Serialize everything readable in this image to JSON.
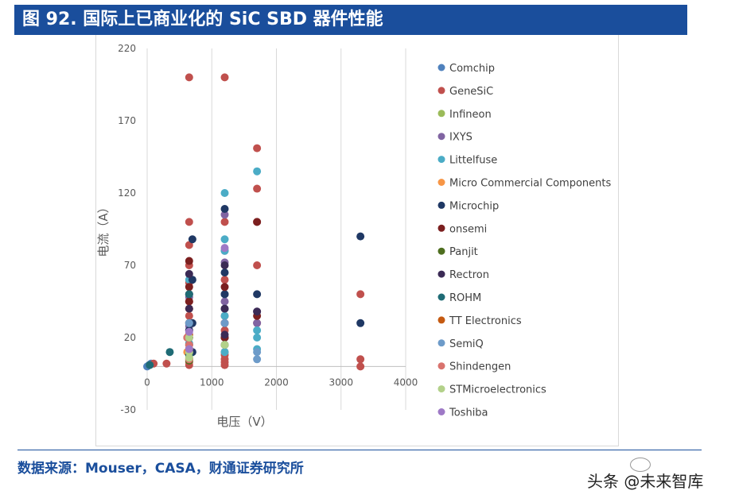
{
  "header": {
    "title": "图 92. 国际上已商业化的 SiC SBD 器件性能"
  },
  "footer": {
    "source": "数据来源：Mouser，CASA，财通证券研究所",
    "watermark": "头条 @未来智库"
  },
  "chart_data": {
    "type": "scatter",
    "title": "",
    "xlabel": "电压（V）",
    "ylabel": "电流（A）",
    "xlim": [
      0,
      4000
    ],
    "ylim": [
      -30,
      220
    ],
    "x_ticks": [
      0,
      1000,
      2000,
      3000,
      4000
    ],
    "y_ticks": [
      -30,
      20,
      70,
      120,
      170,
      220
    ],
    "grid": "vertical",
    "legend_position": "right",
    "series": [
      {
        "name": "Comchip",
        "color": "#4f81bd",
        "points": [
          [
            0,
            0
          ],
          [
            30,
            1
          ],
          [
            60,
            2
          ]
        ]
      },
      {
        "name": "GeneSiC",
        "color": "#c0504d",
        "points": [
          [
            650,
            200
          ],
          [
            1200,
            200
          ],
          [
            1700,
            151
          ],
          [
            1700,
            123
          ],
          [
            650,
            100
          ],
          [
            1200,
            100
          ],
          [
            1700,
            100
          ],
          [
            650,
            84
          ],
          [
            1700,
            70
          ],
          [
            650,
            70
          ],
          [
            1200,
            60
          ],
          [
            650,
            58
          ],
          [
            650,
            50
          ],
          [
            1200,
            50
          ],
          [
            650,
            45
          ],
          [
            650,
            40
          ],
          [
            1200,
            40
          ],
          [
            650,
            35
          ],
          [
            1200,
            35
          ],
          [
            650,
            30
          ],
          [
            1200,
            30
          ],
          [
            1700,
            30
          ],
          [
            650,
            25
          ],
          [
            1200,
            25
          ],
          [
            620,
            20
          ],
          [
            650,
            20
          ],
          [
            1200,
            20
          ],
          [
            650,
            15
          ],
          [
            1200,
            15
          ],
          [
            650,
            10
          ],
          [
            1200,
            10
          ],
          [
            650,
            8
          ],
          [
            1200,
            8
          ],
          [
            650,
            5
          ],
          [
            1200,
            5
          ],
          [
            650,
            3
          ],
          [
            1200,
            3
          ],
          [
            650,
            1
          ],
          [
            1200,
            1
          ],
          [
            300,
            2
          ],
          [
            100,
            2
          ],
          [
            3300,
            50
          ],
          [
            3300,
            5
          ],
          [
            3300,
            0
          ]
        ]
      },
      {
        "name": "Infineon",
        "color": "#9bbb59",
        "points": [
          [
            650,
            12
          ],
          [
            1200,
            15
          ],
          [
            650,
            6
          ]
        ]
      },
      {
        "name": "IXYS",
        "color": "#8064a2",
        "points": [
          [
            1200,
            105
          ],
          [
            1200,
            80
          ],
          [
            1200,
            72
          ],
          [
            650,
            48
          ],
          [
            1700,
            38
          ],
          [
            1700,
            30
          ],
          [
            650,
            28
          ],
          [
            1200,
            45
          ]
        ]
      },
      {
        "name": "Littelfuse",
        "color": "#4bacc6",
        "points": [
          [
            1700,
            135
          ],
          [
            1200,
            120
          ],
          [
            1200,
            88
          ],
          [
            1200,
            80
          ],
          [
            650,
            60
          ],
          [
            1200,
            50
          ],
          [
            1200,
            40
          ],
          [
            1200,
            35
          ],
          [
            1700,
            25
          ],
          [
            1700,
            20
          ],
          [
            650,
            16
          ],
          [
            1700,
            12
          ],
          [
            1200,
            10
          ]
        ]
      },
      {
        "name": "Micro Commercial Components",
        "color": "#f79646",
        "points": [
          [
            650,
            40
          ],
          [
            620,
            10
          ],
          [
            650,
            4
          ]
        ]
      },
      {
        "name": "Microchip",
        "color": "#1f3864",
        "points": [
          [
            700,
            88
          ],
          [
            1200,
            109
          ],
          [
            1200,
            65
          ],
          [
            700,
            60
          ],
          [
            650,
            50
          ],
          [
            1200,
            50
          ],
          [
            1700,
            50
          ],
          [
            700,
            30
          ],
          [
            650,
            25
          ],
          [
            1200,
            20
          ],
          [
            700,
            10
          ],
          [
            3300,
            90
          ],
          [
            3300,
            30
          ]
        ]
      },
      {
        "name": "onsemi",
        "color": "#7b1f1f",
        "points": [
          [
            1700,
            100
          ],
          [
            650,
            73
          ],
          [
            650,
            55
          ],
          [
            1200,
            55
          ],
          [
            650,
            45
          ],
          [
            650,
            30
          ],
          [
            1200,
            30
          ],
          [
            1700,
            35
          ],
          [
            650,
            20
          ],
          [
            1200,
            20
          ],
          [
            650,
            12
          ]
        ]
      },
      {
        "name": "Panjit",
        "color": "#4e6e1f",
        "points": [
          [
            650,
            8
          ],
          [
            650,
            4
          ]
        ]
      },
      {
        "name": "Rectron",
        "color": "#3b2a55",
        "points": [
          [
            650,
            64
          ],
          [
            1200,
            70
          ],
          [
            650,
            40
          ],
          [
            1200,
            40
          ],
          [
            1700,
            38
          ],
          [
            650,
            20
          ],
          [
            1200,
            22
          ],
          [
            650,
            10
          ]
        ]
      },
      {
        "name": "ROHM",
        "color": "#1f6b75",
        "points": [
          [
            350,
            10
          ],
          [
            650,
            50
          ],
          [
            650,
            30
          ],
          [
            650,
            15
          ],
          [
            1200,
            15
          ],
          [
            650,
            8
          ],
          [
            40,
            1
          ]
        ]
      },
      {
        "name": "TT Electronics",
        "color": "#c55a11",
        "points": [
          [
            650,
            22
          ],
          [
            650,
            12
          ]
        ]
      },
      {
        "name": "SemiQ",
        "color": "#6d9bc9",
        "points": [
          [
            1700,
            5
          ],
          [
            1700,
            10
          ],
          [
            1200,
            30
          ],
          [
            650,
            30
          ]
        ]
      },
      {
        "name": "Shindengen",
        "color": "#d9736e",
        "points": [
          [
            620,
            20
          ],
          [
            650,
            15
          ],
          [
            650,
            10
          ],
          [
            650,
            5
          ]
        ]
      },
      {
        "name": "STMicroelectronics",
        "color": "#b3d18a",
        "points": [
          [
            1200,
            15
          ],
          [
            650,
            20
          ],
          [
            650,
            10
          ],
          [
            650,
            6
          ]
        ]
      },
      {
        "name": "Toshiba",
        "color": "#9e79c6",
        "points": [
          [
            1200,
            82
          ],
          [
            650,
            24
          ],
          [
            650,
            12
          ]
        ]
      }
    ]
  }
}
